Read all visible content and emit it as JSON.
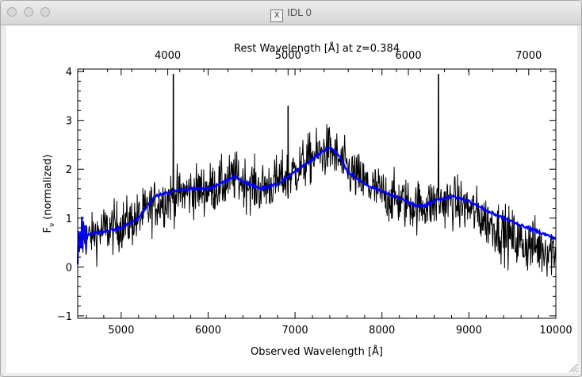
{
  "window": {
    "title": "IDL 0",
    "x_glyph": "X"
  },
  "traffic_lights": [
    "close",
    "minimize",
    "zoom"
  ],
  "chart_data": {
    "type": "line",
    "title": "",
    "top_axis_label": "Rest Wavelength [Å] at z=0.384",
    "top_ticks": [
      "4000",
      "5000",
      "6000",
      "7000"
    ],
    "top_tick_values": [
      4000,
      5000,
      6000,
      7000
    ],
    "redshift": 0.384,
    "xlabel": "Observed Wavelength [Å]",
    "ylabel_main": "F",
    "ylabel_sub": "ν",
    "ylabel_rest": " (normalized)",
    "x_ticks": [
      "5000",
      "6000",
      "7000",
      "8000",
      "9000",
      "10000"
    ],
    "x_tick_values": [
      5000,
      6000,
      7000,
      8000,
      9000,
      10000
    ],
    "y_ticks": [
      "−1",
      "0",
      "1",
      "2",
      "3",
      "4"
    ],
    "y_tick_values": [
      -1,
      0,
      1,
      2,
      3,
      4
    ],
    "xlim": [
      4500,
      10000
    ],
    "ylim": [
      -1.05,
      4.05
    ],
    "grid": false,
    "series": [
      {
        "color": "#000000",
        "noise_sigma": 0.3,
        "x": [
          4500,
          4600,
          4800,
          5000,
          5200,
          5400,
          5600,
          5800,
          6000,
          6200,
          6300,
          6400,
          6600,
          6800,
          7000,
          7200,
          7400,
          7600,
          7800,
          8000,
          8200,
          8400,
          8600,
          8800,
          9000,
          9200,
          9400,
          9600,
          9800,
          10000
        ],
        "y": [
          0.4,
          0.6,
          0.75,
          0.85,
          1.0,
          1.3,
          1.45,
          1.55,
          1.6,
          1.7,
          1.85,
          1.75,
          1.6,
          1.75,
          1.95,
          2.25,
          2.4,
          2.0,
          1.7,
          1.5,
          1.35,
          1.25,
          1.3,
          1.35,
          1.2,
          0.95,
          0.7,
          0.5,
          0.4,
          0.35
        ],
        "spikes": [
          {
            "x": 5600,
            "y": 3.95
          },
          {
            "x": 6920,
            "y": 3.3
          },
          {
            "x": 8650,
            "y": 3.95
          }
        ]
      },
      {
        "color": "#0000ff",
        "x": [
          4500,
          4550,
          4600,
          4700,
          4800,
          5000,
          5200,
          5300,
          5400,
          5600,
          5800,
          6000,
          6200,
          6300,
          6400,
          6600,
          6800,
          7000,
          7200,
          7300,
          7400,
          7500,
          7600,
          7800,
          8000,
          8200,
          8400,
          8500,
          8600,
          8800,
          9000,
          9200,
          9400,
          9600,
          9800,
          10000
        ],
        "y": [
          0.4,
          0.7,
          0.65,
          0.7,
          0.72,
          0.8,
          1.0,
          1.25,
          1.45,
          1.55,
          1.6,
          1.6,
          1.75,
          1.85,
          1.75,
          1.6,
          1.7,
          1.95,
          2.2,
          2.35,
          2.45,
          2.3,
          1.95,
          1.7,
          1.55,
          1.4,
          1.25,
          1.25,
          1.35,
          1.45,
          1.35,
          1.15,
          1.0,
          0.85,
          0.72,
          0.58
        ]
      }
    ]
  }
}
